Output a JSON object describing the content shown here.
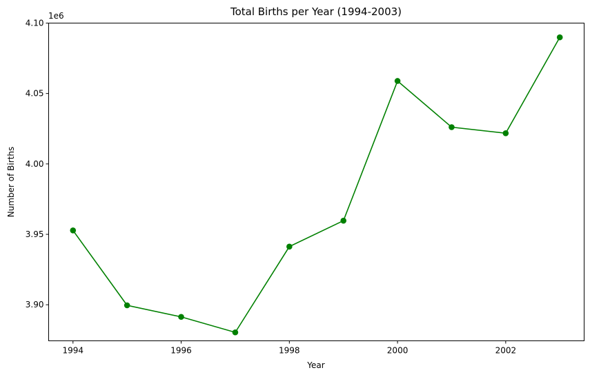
{
  "chart_data": {
    "type": "line",
    "title": "Total Births per Year (1994-2003)",
    "xlabel": "Year",
    "ylabel": "Number of Births",
    "y_offset_label": "1e6",
    "x": [
      1994,
      1995,
      1996,
      1997,
      1998,
      1999,
      2000,
      2001,
      2002,
      2003
    ],
    "series": [
      {
        "values": [
          3952800,
          3899600,
          3891400,
          3880400,
          3941300,
          3959700,
          4058900,
          4026100,
          4021800,
          4089900
        ],
        "color": "#008000",
        "marker": "circle"
      }
    ],
    "xlim": [
      1993.55,
      2003.45
    ],
    "ylim": [
      3.8744,
      4.1
    ],
    "x_ticks": [
      1994,
      1996,
      1998,
      2000,
      2002
    ],
    "x_tick_labels": [
      "1994",
      "1996",
      "1998",
      "2000",
      "2002"
    ],
    "y_ticks": [
      3.9,
      3.95,
      4.0,
      4.05,
      4.1
    ],
    "y_tick_labels": [
      "3.90",
      "3.95",
      "4.00",
      "4.05",
      "4.10"
    ],
    "grid": false,
    "legend": "none"
  }
}
